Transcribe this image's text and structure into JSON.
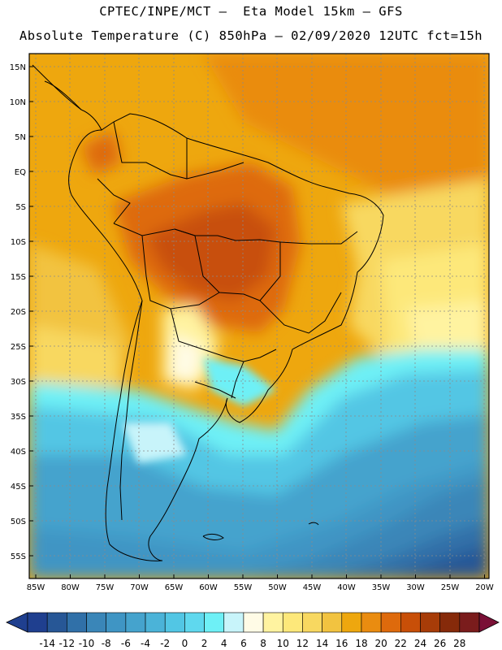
{
  "header": {
    "line1": "CPTEC/INPE/MCT –  Eta Model 15km – GFS",
    "line2": "Absolute Temperature (C) 850hPa – 02/09/2020 12UTC fct=15h"
  },
  "axes": {
    "lat_labels": [
      "15N",
      "10N",
      "5N",
      "EQ",
      "5S",
      "10S",
      "15S",
      "20S",
      "25S",
      "30S",
      "35S",
      "40S",
      "45S",
      "50S",
      "55S"
    ],
    "lon_labels": [
      "85W",
      "80W",
      "75W",
      "70W",
      "65W",
      "60W",
      "55W",
      "50W",
      "45W",
      "40W",
      "35W",
      "30W",
      "25W",
      "20W"
    ]
  },
  "colorbar": {
    "labels": [
      "-14",
      "-12",
      "-10",
      "-8",
      "-6",
      "-4",
      "-2",
      "0",
      "2",
      "4",
      "6",
      "8",
      "10",
      "12",
      "14",
      "16",
      "18",
      "20",
      "22",
      "24",
      "26",
      "28"
    ],
    "colors": [
      "#1f3f8f",
      "#275796",
      "#3070a8",
      "#3a86b8",
      "#3f95c4",
      "#45a3cd",
      "#4bb3d8",
      "#52c6e4",
      "#5fd8ee",
      "#6ef0f6",
      "#c8f4fa",
      "#fffbe6",
      "#fff3a0",
      "#fde87a",
      "#f8d860",
      "#f2c340",
      "#eea70e",
      "#ea8c10",
      "#de6a0c",
      "#c84f08",
      "#a73c08",
      "#862a0a",
      "#7a1c1c"
    ]
  },
  "map": {
    "region": "South America",
    "variable": "Absolute Temperature (C) 850hPa"
  }
}
